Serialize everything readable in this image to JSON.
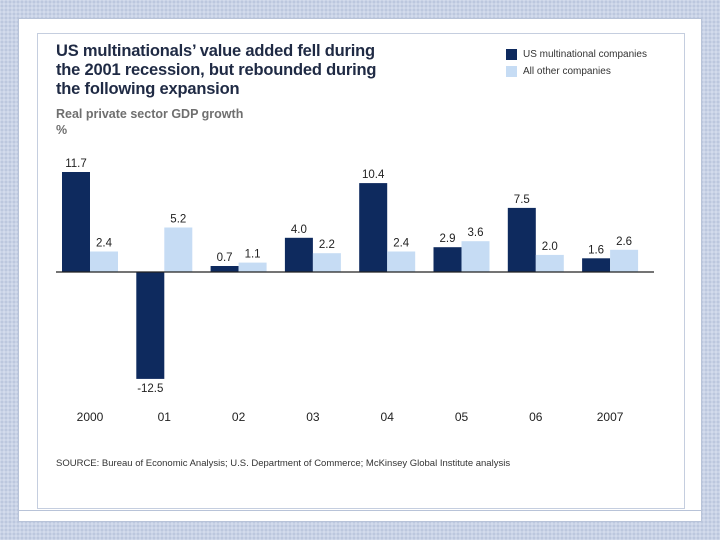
{
  "colors": {
    "us_multinational": "#0e2a5e",
    "all_other": "#c6dcf4",
    "axis": "#222222"
  },
  "chart_data": {
    "type": "bar",
    "title": "US multinationals’ value added fell during the 2001 recession, but rebounded during the following expansion",
    "subtitle": "Real private sector GDP growth",
    "unit": "%",
    "categories": [
      "2000",
      "01",
      "02",
      "03",
      "04",
      "05",
      "06",
      "2007"
    ],
    "series": [
      {
        "name": "US multinational companies",
        "values": [
          11.7,
          -12.5,
          0.7,
          4.0,
          10.4,
          2.9,
          7.5,
          1.6
        ]
      },
      {
        "name": "All other companies",
        "values": [
          2.4,
          5.2,
          1.1,
          2.2,
          2.4,
          3.6,
          2.0,
          2.6
        ]
      }
    ],
    "value_labels": [
      [
        "11.7",
        "-12.5",
        "0.7",
        "4.0",
        "10.4",
        "2.9",
        "7.5",
        "1.6"
      ],
      [
        "2.4",
        "5.2",
        "1.1",
        "2.2",
        "2.4",
        "3.6",
        "2.0",
        "2.6"
      ]
    ],
    "ylim": [
      -12.5,
      11.7
    ],
    "grid": false,
    "legend": "top-right",
    "source": "SOURCE: Bureau of Economic Analysis; U.S. Department of Commerce; McKinsey Global Institute analysis"
  }
}
